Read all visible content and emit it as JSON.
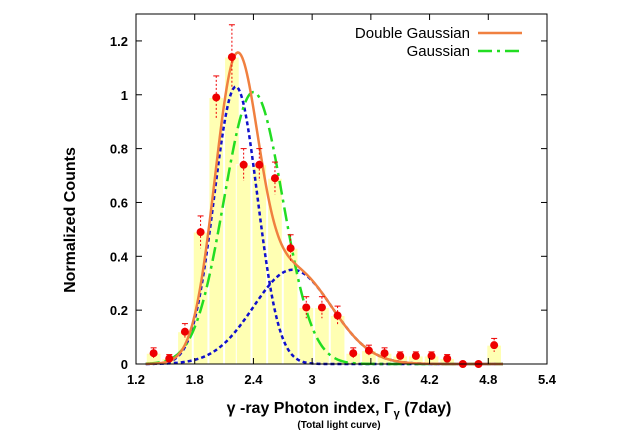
{
  "chart_data": {
    "type": "bar",
    "xlabel_prefix": "γ -ray Photon index, Γ",
    "xlabel_subscript": "γ",
    "xlabel_suffix": " (7day)",
    "xlabel_sub": "(Total light curve)",
    "ylabel": "Normalized Counts",
    "xlim": [
      1.2,
      5.4
    ],
    "ylim": [
      0,
      1.3
    ],
    "x_ticks": [
      "1.2",
      "1.8",
      "2.4",
      "3",
      "3.6",
      "4.2",
      "4.8",
      "5.4"
    ],
    "x_tick_values": [
      1.2,
      1.8,
      2.4,
      3.0,
      3.6,
      4.2,
      4.8,
      5.4
    ],
    "y_ticks": [
      "0",
      "0.2",
      "0.4",
      "0.6",
      "0.8",
      "1",
      "1.2"
    ],
    "y_tick_values": [
      0,
      0.2,
      0.4,
      0.6,
      0.8,
      1.0,
      1.2
    ],
    "histogram": {
      "bin_centers": [
        1.38,
        1.54,
        1.7,
        1.86,
        2.02,
        2.18,
        2.3,
        2.46,
        2.62,
        2.78,
        2.94,
        3.1,
        3.26,
        3.42,
        3.58,
        3.74,
        3.9,
        4.06,
        4.22,
        4.38,
        4.54,
        4.7,
        4.86
      ],
      "bin_width": 0.15,
      "values": [
        0.04,
        0.02,
        0.12,
        0.49,
        0.99,
        1.14,
        0.74,
        0.74,
        0.69,
        0.43,
        0.21,
        0.21,
        0.18,
        0.04,
        0.05,
        0.04,
        0.03,
        0.03,
        0.03,
        0.02,
        0.0,
        0.0,
        0.07
      ],
      "errors": [
        0.02,
        0.015,
        0.03,
        0.06,
        0.08,
        0.12,
        0.06,
        0.06,
        0.06,
        0.05,
        0.04,
        0.04,
        0.035,
        0.02,
        0.02,
        0.02,
        0.015,
        0.015,
        0.015,
        0.015,
        0.0,
        0.0,
        0.025
      ],
      "bar_color": "#ffffb3",
      "point_color": "#ee0000",
      "error_color": "#ee0000"
    },
    "series": [
      {
        "name": "Double Gaussian",
        "style": "solid",
        "color": "#f08040",
        "components": [
          {
            "amp": 1.03,
            "mu": 2.22,
            "sigma": 0.22
          },
          {
            "amp": 0.35,
            "mu": 2.8,
            "sigma": 0.4
          }
        ]
      },
      {
        "name": "Gaussian",
        "style": "dash-dot",
        "color": "#22dd22",
        "components": [
          {
            "amp": 1.01,
            "mu": 2.4,
            "sigma": 0.3
          }
        ]
      },
      {
        "style": "dotted",
        "color": "#1010cc",
        "components": [
          {
            "amp": 1.03,
            "mu": 2.22,
            "sigma": 0.22
          }
        ]
      },
      {
        "style": "dotted",
        "color": "#1010cc",
        "components": [
          {
            "amp": 0.35,
            "mu": 2.8,
            "sigma": 0.4
          }
        ]
      }
    ],
    "legend": {
      "position": "top-right",
      "entries": [
        "Double Gaussian",
        "Gaussian"
      ]
    },
    "grid": false
  }
}
